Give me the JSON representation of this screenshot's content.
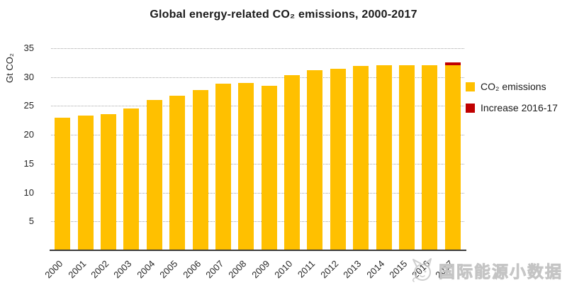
{
  "title": "Global energy-related CO₂ emissions, 2000-2017",
  "watermark": {
    "text": "国际能源小数据",
    "logo": "mascot-doodle-logo"
  },
  "chart_data": {
    "type": "bar",
    "stacked": true,
    "title": "Global energy-related CO₂ emissions, 2000-2017",
    "xlabel": "",
    "ylabel": "Gt CO₂",
    "categories": [
      "2000",
      "2001",
      "2002",
      "2003",
      "2004",
      "2005",
      "2006",
      "2007",
      "2008",
      "2009",
      "2010",
      "2011",
      "2012",
      "2013",
      "2014",
      "2015",
      "2016",
      "2017"
    ],
    "series": [
      {
        "name": "CO₂ emissions",
        "color": "#FFC000",
        "values": [
          23.0,
          23.3,
          23.6,
          24.6,
          26.0,
          26.8,
          27.7,
          28.8,
          29.0,
          28.5,
          30.3,
          31.2,
          31.5,
          31.9,
          32.1,
          32.0,
          32.1,
          32.0
        ]
      },
      {
        "name": "Increase 2016-17",
        "color": "#C00000",
        "values": [
          0,
          0,
          0,
          0,
          0,
          0,
          0,
          0,
          0,
          0,
          0,
          0,
          0,
          0,
          0,
          0,
          0,
          0.5
        ]
      }
    ],
    "ylim": [
      0,
      35
    ],
    "yticks": [
      5,
      10,
      15,
      20,
      25,
      30,
      35
    ],
    "grid": "horizontal-dotted",
    "legend_position": "right",
    "annotations": "2017 bar topped with dark-red segment showing the 2016-17 increase (total ≈32.5 Gt)"
  }
}
